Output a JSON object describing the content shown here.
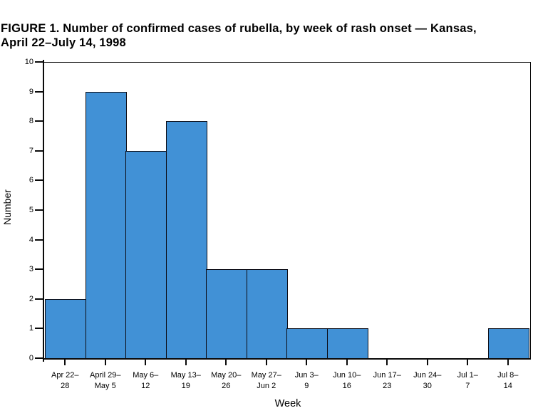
{
  "figure": {
    "title_line1": "FIGURE 1. Number of confirmed cases of rubella, by week of rash onset — Kansas,",
    "title_line2": "April 22–July 14, 1998"
  },
  "chart_data": {
    "type": "bar",
    "subtype": "histogram",
    "title": "FIGURE 1. Number of confirmed cases of rubella, by week of rash onset — Kansas, April 22–July 14, 1998",
    "xlabel": "Week",
    "ylabel": "Number",
    "ylim": [
      0,
      10
    ],
    "y_ticks": [
      0,
      1,
      2,
      3,
      4,
      5,
      6,
      7,
      8,
      9,
      10
    ],
    "categories": [
      {
        "line1": "Apr 22–",
        "line2": "28"
      },
      {
        "line1": "April 29–",
        "line2": "May 5"
      },
      {
        "line1": "May 6–",
        "line2": "12"
      },
      {
        "line1": "May 13–",
        "line2": "19"
      },
      {
        "line1": "May 20–",
        "line2": "26"
      },
      {
        "line1": "May 27–",
        "line2": "Jun 2"
      },
      {
        "line1": "Jun 3–",
        "line2": "9"
      },
      {
        "line1": "Jun 10–",
        "line2": "16"
      },
      {
        "line1": "Jun 17–",
        "line2": "23"
      },
      {
        "line1": "Jun 24–",
        "line2": "30"
      },
      {
        "line1": "Jul 1–",
        "line2": "7"
      },
      {
        "line1": "Jul 8–",
        "line2": "14"
      }
    ],
    "values": [
      2,
      9,
      7,
      8,
      3,
      3,
      1,
      1,
      0,
      0,
      0,
      1
    ],
    "grid": false,
    "legend": "none",
    "colors": {
      "bar_fill": "#4191D6",
      "bar_border": "#0b0b14",
      "axis": "#0a0a0a",
      "text": "#000000"
    }
  }
}
